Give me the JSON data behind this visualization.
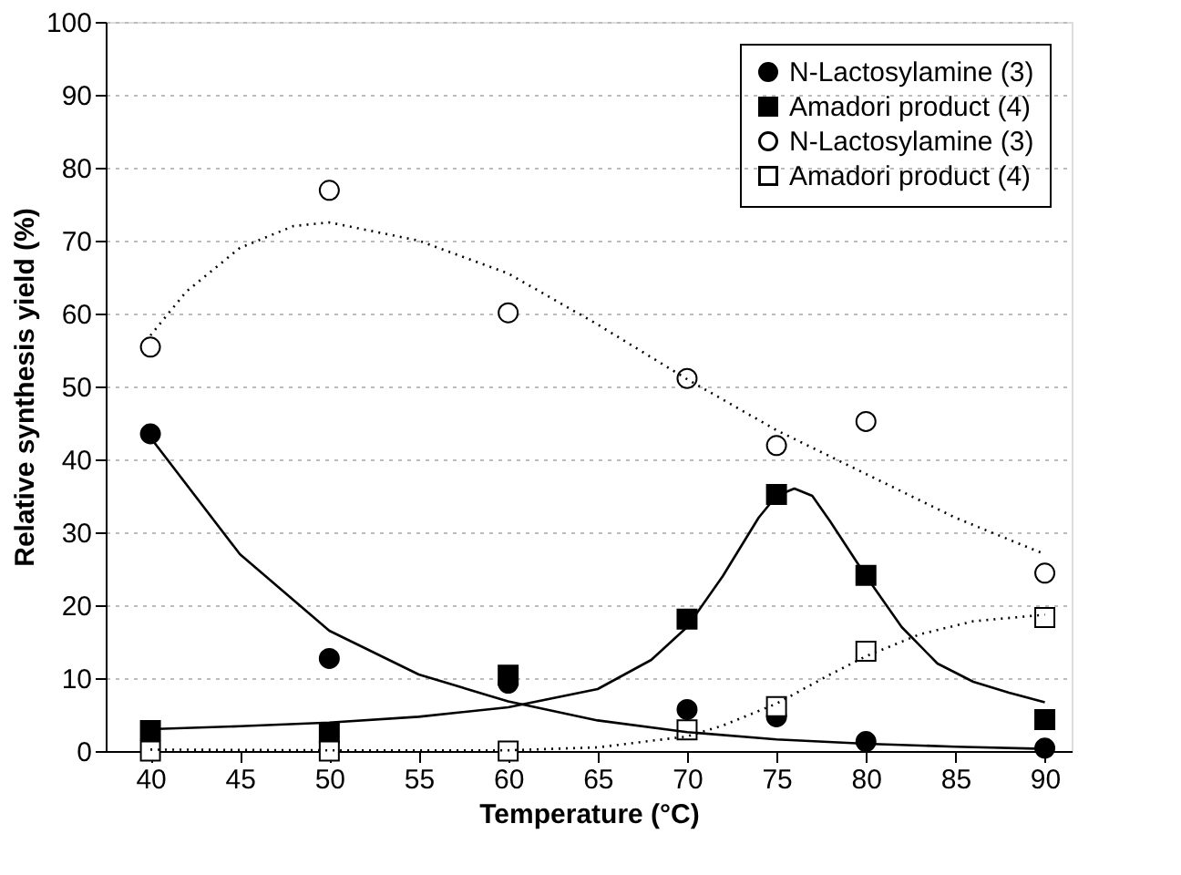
{
  "chart_data": {
    "type": "scatter",
    "xlabel": "Temperature (°C)",
    "ylabel": "Relative synthesis yield (%)",
    "x": [
      40,
      50,
      60,
      70,
      75,
      80,
      90
    ],
    "xlim": [
      37.5,
      91.5
    ],
    "xticks": [
      40,
      45,
      50,
      55,
      60,
      65,
      70,
      75,
      80,
      85,
      90
    ],
    "ylim": [
      0,
      100
    ],
    "yticks": [
      0,
      10,
      20,
      30,
      40,
      50,
      60,
      70,
      80,
      90,
      100
    ],
    "grid": "y",
    "legend": "top right",
    "series": [
      {
        "name": "N-Lactosylamine (3)",
        "color": "#000000",
        "marker": "circle",
        "values": [
          43.5,
          12.7,
          9.3,
          5.7,
          4.7,
          1.3,
          0.4
        ]
      },
      {
        "name": "Amadori product (4)",
        "color": "#000000",
        "marker": "square",
        "values": [
          2.8,
          2.5,
          10.4,
          18.1,
          35.2,
          24.1,
          4.3
        ]
      },
      {
        "name": "N-Lactosylamine (3)",
        "color": "#ffffff",
        "marker": "circle",
        "values": [
          55.4,
          76.9,
          60.1,
          51.1,
          41.9,
          45.2,
          24.4
        ]
      },
      {
        "name": "Amadori product (4)",
        "color": "#ffffff",
        "marker": "square",
        "values": [
          0,
          0,
          0,
          2.9,
          6.1,
          13.7,
          18.3
        ]
      },
      {
        "type": "line",
        "color": "#000000",
        "line_style": "solid",
        "x": [
          40,
          45,
          50,
          55,
          60,
          65,
          70,
          75,
          80,
          85,
          90
        ],
        "values": [
          43,
          27,
          16.5,
          10.5,
          6.8,
          4.2,
          2.6,
          1.6,
          1.0,
          0.6,
          0.3
        ]
      },
      {
        "type": "line",
        "color": "#000000",
        "line_style": "solid",
        "x": [
          40,
          45,
          50,
          55,
          60,
          65,
          68,
          70,
          72,
          74,
          75,
          76,
          77,
          78,
          80,
          82,
          84,
          86,
          88,
          90
        ],
        "values": [
          3.0,
          3.4,
          3.9,
          4.7,
          6.0,
          8.5,
          12.5,
          17,
          24,
          32,
          35,
          36,
          35,
          31.5,
          24,
          17,
          12,
          9.5,
          8,
          6.7
        ]
      },
      {
        "type": "line",
        "color": "#000000",
        "line_style": "dotted",
        "x": [
          40,
          42,
          45,
          48,
          50,
          55,
          60,
          65,
          70,
          75,
          80,
          85,
          90
        ],
        "values": [
          57,
          63,
          69,
          72,
          72.5,
          70,
          65.5,
          58.5,
          51,
          44,
          38,
          32,
          27
        ]
      },
      {
        "type": "line",
        "color": "#000000",
        "line_style": "dotted",
        "x": [
          40,
          50,
          60,
          65,
          70,
          72,
          75,
          78,
          80,
          83,
          86,
          90
        ],
        "values": [
          0.2,
          0.1,
          0.1,
          0.5,
          2,
          3.5,
          6.5,
          10.5,
          13,
          16,
          17.8,
          18.7
        ]
      }
    ]
  }
}
